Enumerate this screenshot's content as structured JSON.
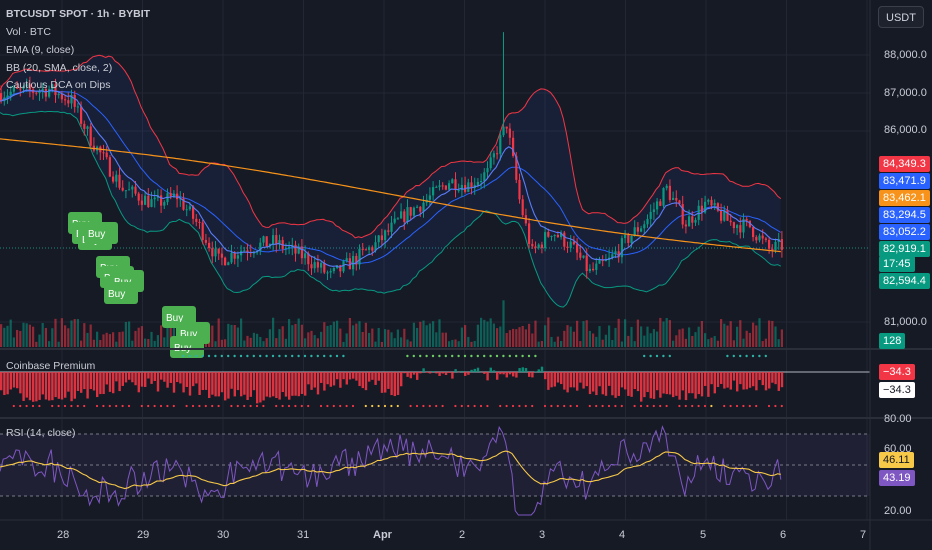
{
  "header": {
    "symbol_line": "BTCUSDT SPOT · 1h · BYBIT",
    "currency": "USDT"
  },
  "legend": {
    "volume": "Vol · BTC",
    "ema": "EMA (9, close)",
    "bb": "BB (20, SMA, close, 2)",
    "strategy": "Cautious DCA on Dips"
  },
  "panes": {
    "premium": "Coinbase Premium",
    "rsi": "RSI (14, close)"
  },
  "price_axis": {
    "ticks": [
      "88,000.0",
      "87,000.0",
      "86,000.0",
      "81,000.0"
    ],
    "badges": [
      {
        "text": "84,349.3",
        "color": "#f23645"
      },
      {
        "text": "83,471.9",
        "color": "#2962ff"
      },
      {
        "text": "83,462.1",
        "color": "#f7931a"
      },
      {
        "text": "83,294.5",
        "color": "#2962ff"
      },
      {
        "text": "83,052.2",
        "color": "#2962ff"
      },
      {
        "text": "82,919.1",
        "color": "#089981"
      },
      {
        "text": "17:45",
        "color": "#089981"
      },
      {
        "text": "82,594.4",
        "color": "#089981"
      },
      {
        "text": "128",
        "color": "#089981"
      }
    ]
  },
  "premium_axis": {
    "badge_a": "−34.3",
    "badge_b": "−34.3"
  },
  "rsi_axis": {
    "ticks": [
      "80.00",
      "60.00",
      "20.00"
    ],
    "badge_a": "46.11",
    "badge_b": "43.19"
  },
  "time_axis": {
    "labels": [
      "28",
      "29",
      "30",
      "31",
      "Apr",
      "2",
      "3",
      "4",
      "5",
      "6",
      "7"
    ]
  },
  "signals": {
    "buy_label": "Buy",
    "cluster_1": [
      "Buy",
      "Buy",
      "Buy",
      "Buy",
      "Buy"
    ],
    "cluster_2": [
      "Buy",
      "Buy",
      "Buy",
      "Buy",
      "Buy"
    ],
    "cluster_3": [
      "Buy",
      "Buy",
      "Buy"
    ]
  },
  "chart_data": {
    "type": "line",
    "title": "BTCUSDT SPOT · 1h · BYBIT",
    "xlabel": "",
    "ylabel": "",
    "x": [
      "28",
      "29",
      "30",
      "31",
      "Apr",
      "2",
      "3",
      "4",
      "5"
    ],
    "ylim": [
      80600,
      88600
    ],
    "series": [
      {
        "name": "EMA (9, close)",
        "values": [
          86900,
          84200,
          82800,
          82400,
          83100,
          84700,
          83600,
          83200,
          83050
        ]
      },
      {
        "name": "BB (20, SMA, close, 2)",
        "values": [
          87000,
          84600,
          82900,
          82500,
          82800,
          84500,
          84000,
          83100,
          83300
        ]
      }
    ],
    "rsi": {
      "name": "RSI (14, close)",
      "ylim": [
        20,
        80
      ],
      "last": 43.19,
      "ma_last": 46.11
    },
    "premium": {
      "name": "Coinbase Premium",
      "last": -34.3
    }
  }
}
